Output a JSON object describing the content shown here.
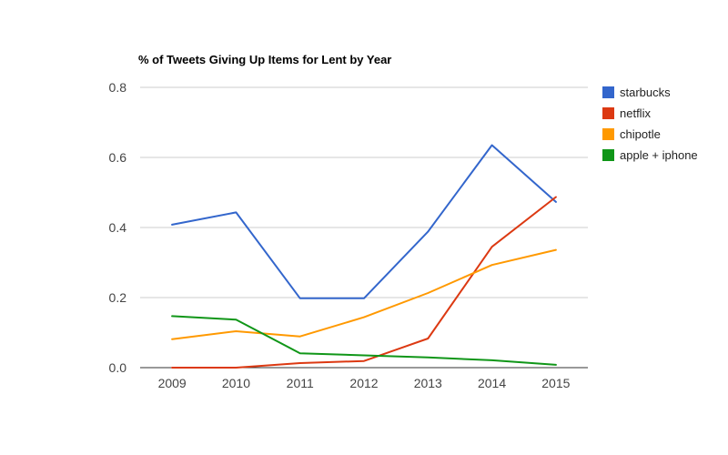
{
  "chart_data": {
    "type": "line",
    "title": "% of Tweets Giving Up Items for Lent by Year",
    "xlabel": "",
    "ylabel": "",
    "x": [
      "2009",
      "2010",
      "2011",
      "2012",
      "2013",
      "2014",
      "2015"
    ],
    "ylim": [
      0,
      0.8
    ],
    "yticks": [
      "0.0",
      "0.2",
      "0.4",
      "0.6",
      "0.8"
    ],
    "grid": true,
    "legend_position": "right",
    "series": [
      {
        "name": "starbucks",
        "color": "#3366cc",
        "values": [
          0.408,
          0.443,
          0.198,
          0.198,
          0.388,
          0.635,
          0.473
        ]
      },
      {
        "name": "netflix",
        "color": "#dc3912",
        "values": [
          0.0,
          0.0,
          0.013,
          0.019,
          0.083,
          0.345,
          0.487
        ]
      },
      {
        "name": "chipotle",
        "color": "#ff9900",
        "values": [
          0.081,
          0.104,
          0.089,
          0.144,
          0.213,
          0.293,
          0.336
        ]
      },
      {
        "name": "apple + iphone",
        "color": "#109618",
        "values": [
          0.147,
          0.137,
          0.041,
          0.035,
          0.029,
          0.021,
          0.008
        ]
      }
    ]
  }
}
